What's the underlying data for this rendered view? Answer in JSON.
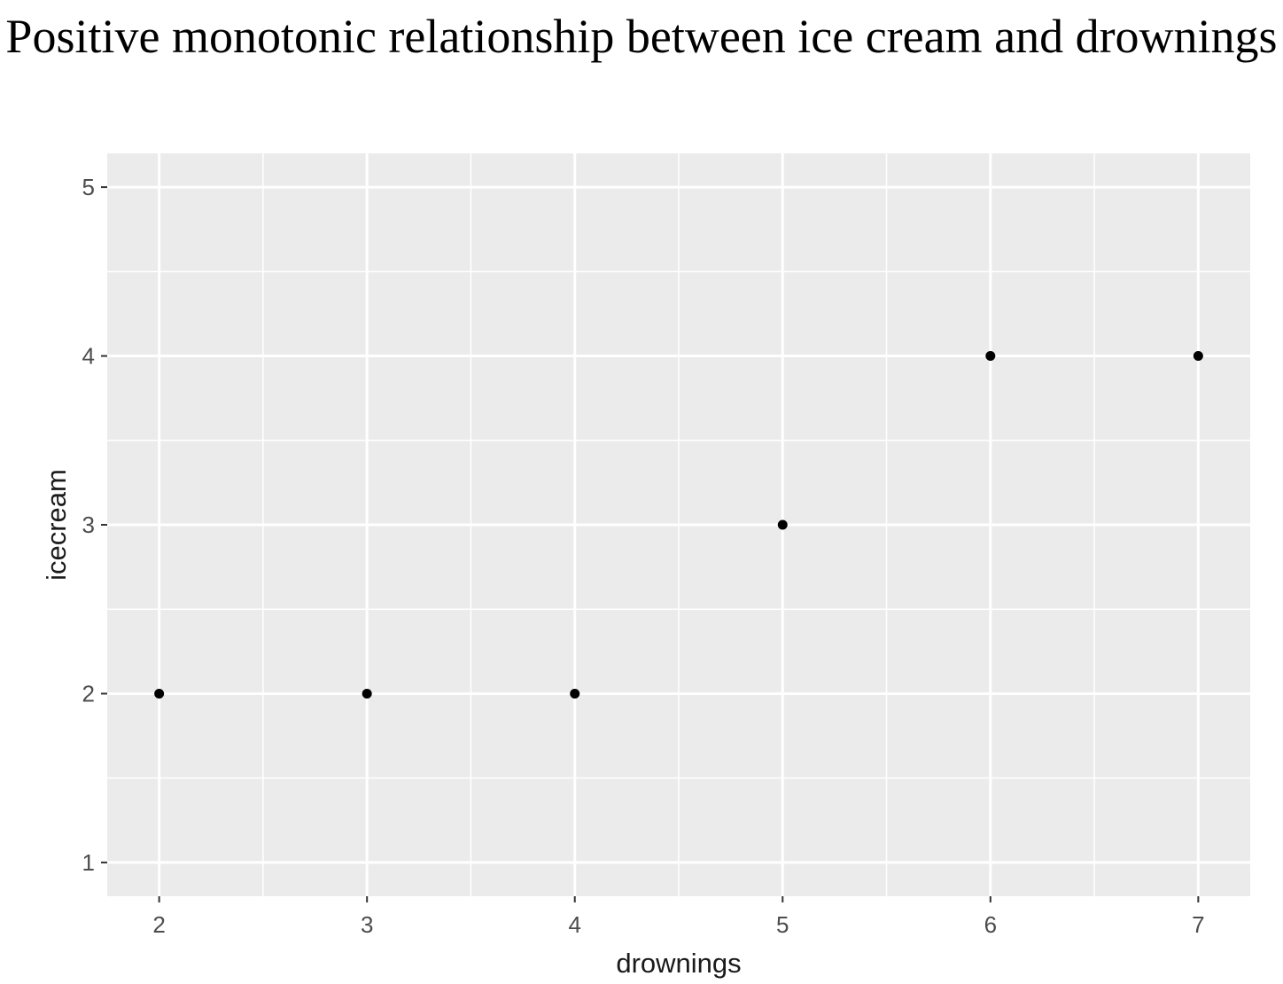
{
  "chart_data": {
    "type": "scatter",
    "title": "Positive monotonic relationship between ice cream and drownings",
    "xlabel": "drownings",
    "ylabel": "icecream",
    "x": [
      2,
      3,
      4,
      5,
      6,
      7
    ],
    "y": [
      2,
      2,
      2,
      3,
      4,
      4
    ],
    "xlim": [
      1.75,
      7.25
    ],
    "ylim": [
      0.8,
      5.2
    ],
    "xticks": [
      2,
      3,
      4,
      5,
      6,
      7
    ],
    "yticks": [
      1,
      2,
      3,
      4,
      5
    ],
    "grid": true,
    "legend": "none",
    "colors": {
      "panel_background": "#ebebeb",
      "grid": "#ffffff",
      "point": "#000000",
      "tick_label": "#4d4d4d",
      "tick": "#333333"
    }
  }
}
